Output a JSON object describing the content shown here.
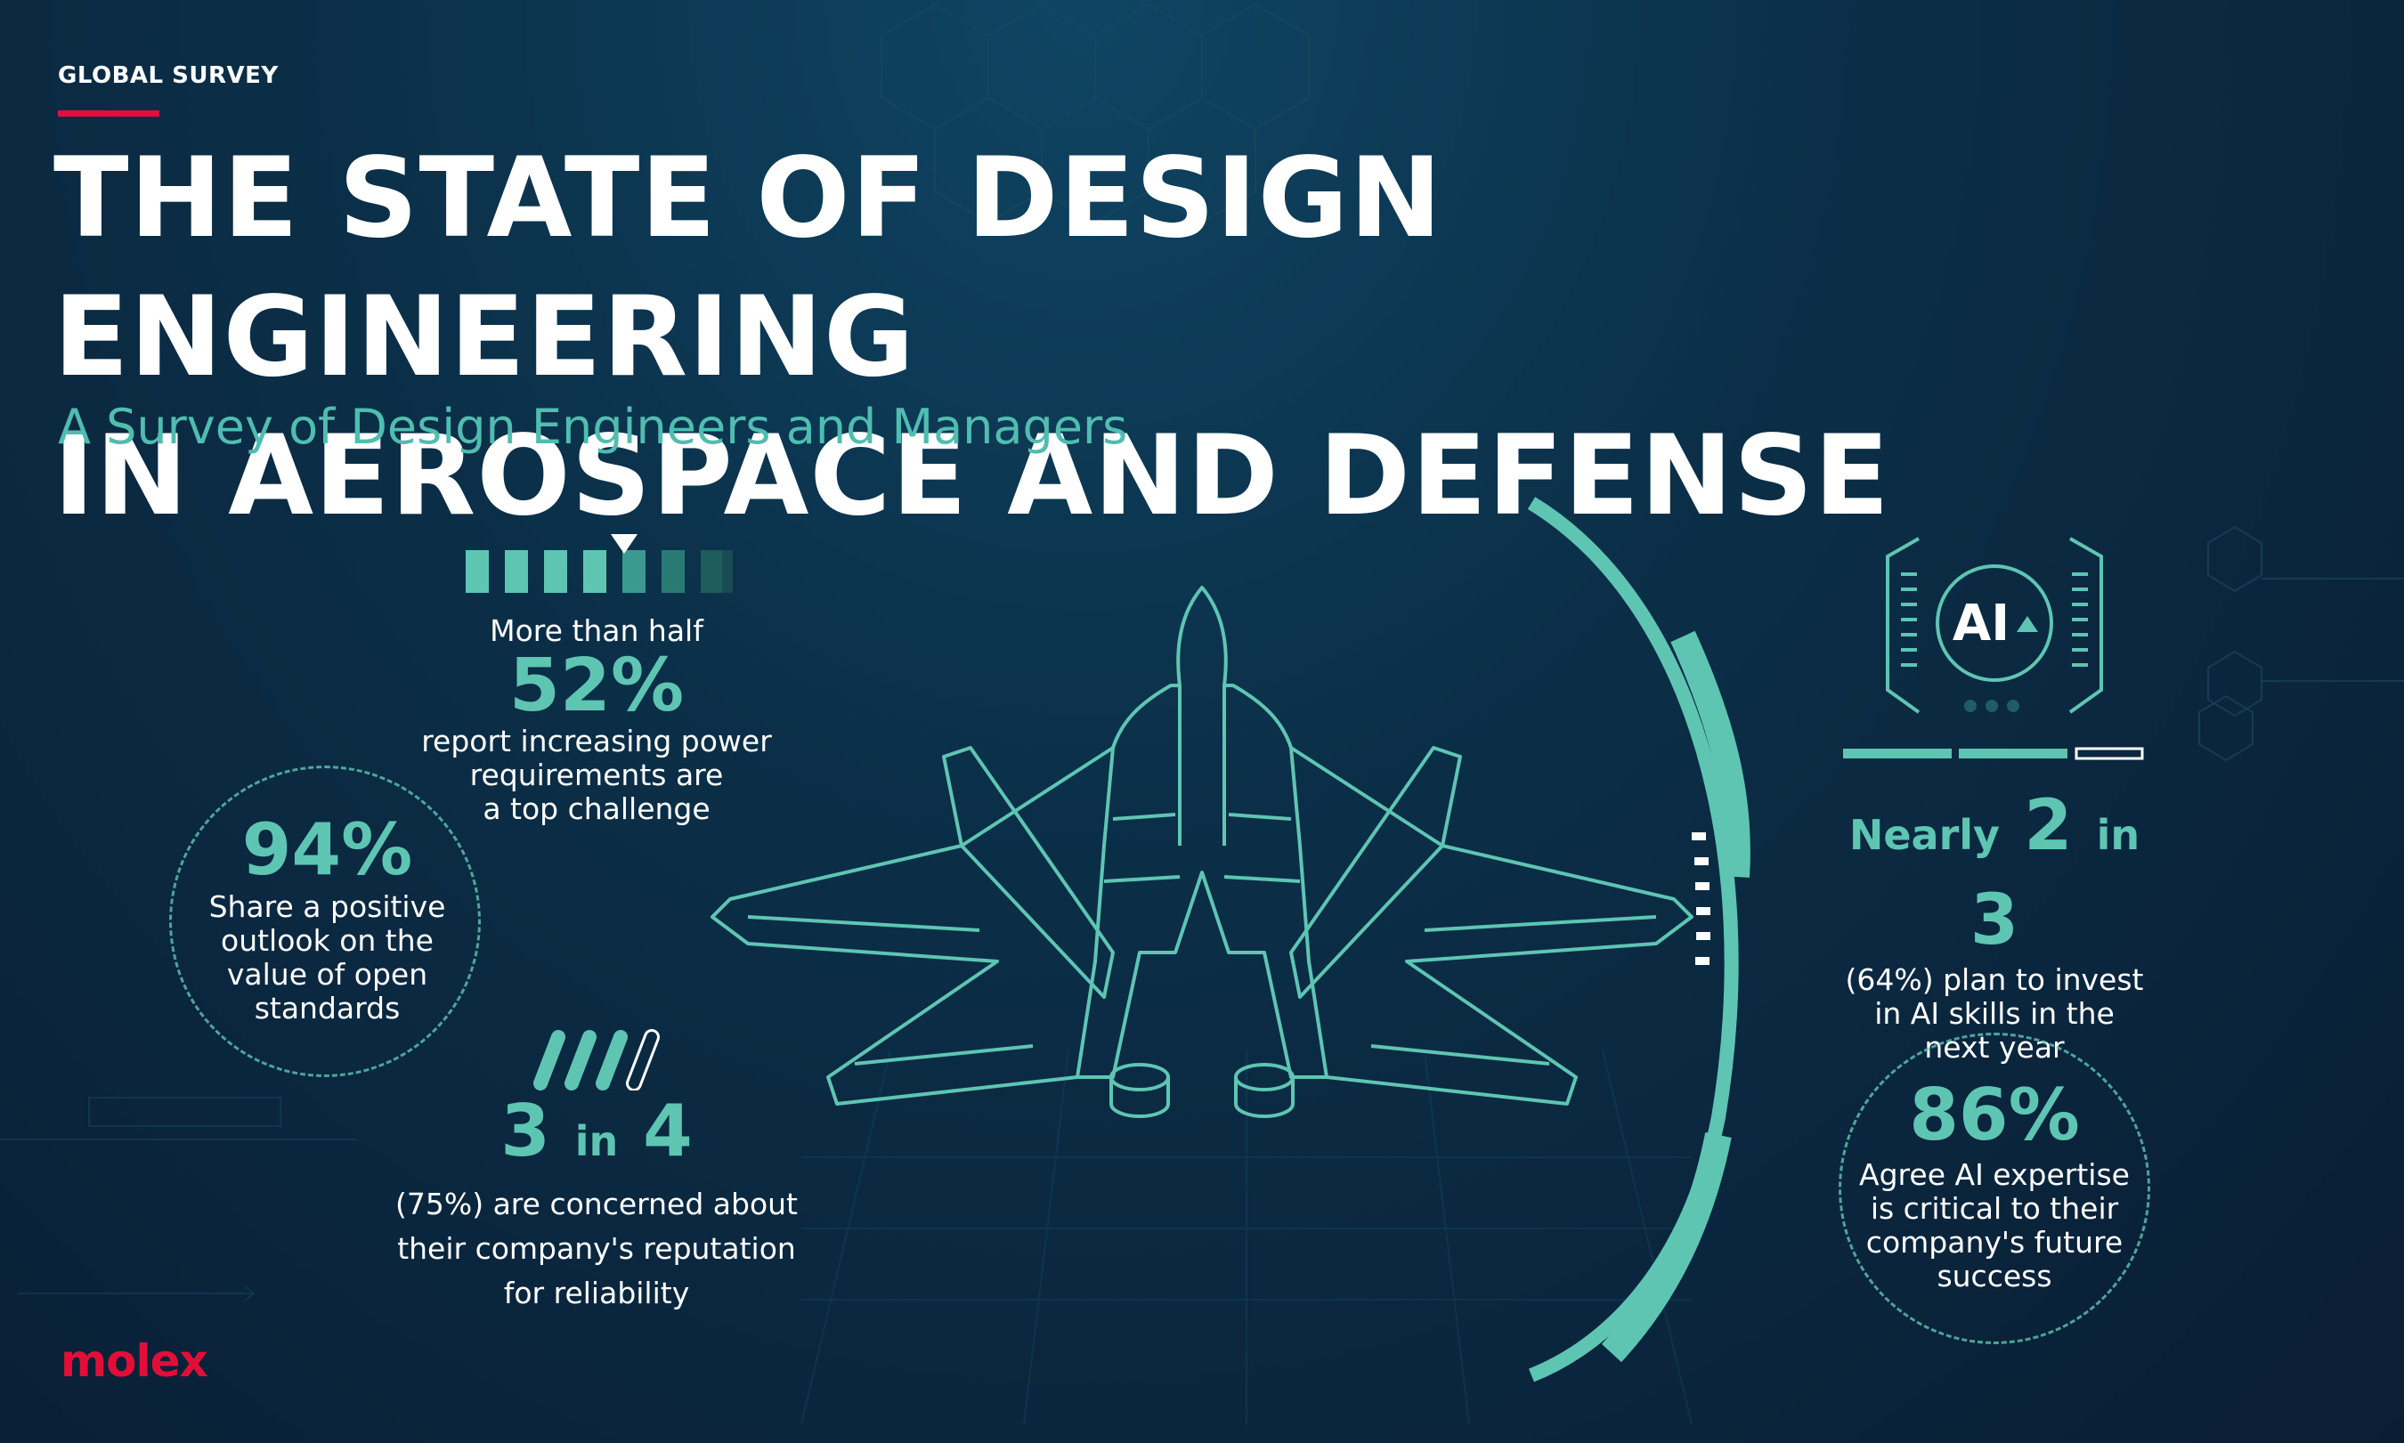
{
  "header": {
    "eyebrow": "GLOBAL SURVEY",
    "title_line1": "THE STATE OF DESIGN ENGINEERING",
    "title_line2": "IN AEROSPACE AND DEFENSE",
    "subtitle": "A Survey of Design Engineers and Managers"
  },
  "stats": {
    "power": {
      "lead": "More than half",
      "value": "52%",
      "text_line1": "report increasing power",
      "text_line2": "requirements are",
      "text_line3": "a top challenge"
    },
    "open_standards": {
      "value": "94%",
      "text_line1": "Share a positive",
      "text_line2": "outlook on the",
      "text_line3": "value of open",
      "text_line4": "standards"
    },
    "reputation": {
      "num_a": "3",
      "in_word": "in",
      "num_b": "4",
      "text_line1": "(75%) are concerned about",
      "text_line2": "their company's reputation",
      "text_line3": "for reliability"
    },
    "ai_skills": {
      "prefix": "Nearly",
      "num_a": "2",
      "in_word": "in",
      "num_b": "3",
      "text_line1": "(64%) plan to invest",
      "text_line2": "in AI skills in the",
      "text_line3": "next year"
    },
    "ai_expertise": {
      "value": "86%",
      "text_line1": "Agree AI expertise",
      "text_line2": "is critical to their",
      "text_line3": "company's future",
      "text_line4": "success"
    }
  },
  "ai_badge": {
    "label": "AI"
  },
  "brand": {
    "logo": "molex"
  },
  "colors": {
    "accent_teal": "#5ec5b3",
    "brand_red": "#e30e38",
    "background": "#0b2a42"
  },
  "icons": [
    "progress-bar-icon",
    "slash-bars-icon",
    "ai-chip-icon",
    "jet-aircraft-illustration"
  ]
}
